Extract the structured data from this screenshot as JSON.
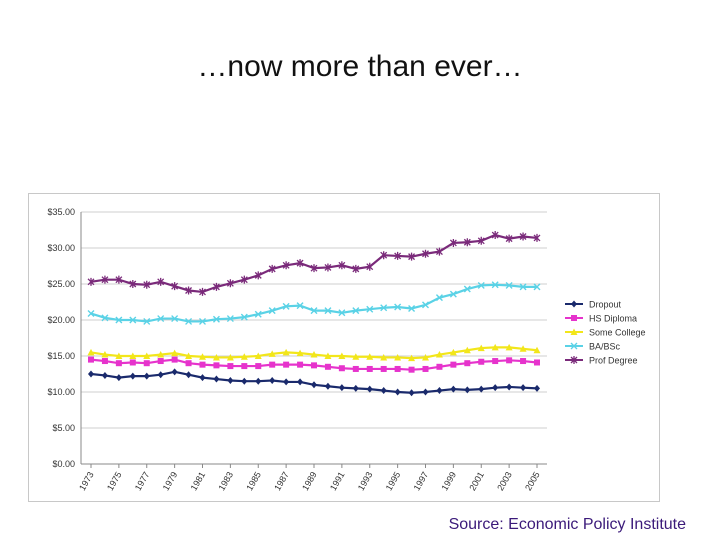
{
  "slide": {
    "title": "…now more than ever…",
    "source": "Source: Economic Policy Institute"
  },
  "chart_data": {
    "type": "line",
    "title": "",
    "xlabel": "",
    "ylabel": "",
    "x": [
      1973,
      1974,
      1975,
      1976,
      1977,
      1978,
      1979,
      1980,
      1981,
      1982,
      1983,
      1984,
      1985,
      1986,
      1987,
      1988,
      1989,
      1990,
      1991,
      1992,
      1993,
      1994,
      1995,
      1996,
      1997,
      1998,
      1999,
      2000,
      2001,
      2002,
      2003,
      2004,
      2005
    ],
    "xticks": [
      "1973",
      "1975",
      "1977",
      "1979",
      "1981",
      "1983",
      "1985",
      "1987",
      "1989",
      "1991",
      "1993",
      "1995",
      "1997",
      "1999",
      "2001",
      "2003",
      "2005"
    ],
    "ylim": [
      0,
      35
    ],
    "yticks": [
      "$0.00",
      "$5.00",
      "$10.00",
      "$15.00",
      "$20.00",
      "$25.00",
      "$30.00",
      "$35.00"
    ],
    "grid": "horizontal",
    "legend_position": "right",
    "series": [
      {
        "name": "Dropout",
        "color": "#1a2a6c",
        "marker": "diamond",
        "values": [
          12.5,
          12.3,
          12.0,
          12.2,
          12.2,
          12.4,
          12.8,
          12.4,
          12.0,
          11.8,
          11.6,
          11.5,
          11.5,
          11.6,
          11.4,
          11.4,
          11.0,
          10.8,
          10.6,
          10.5,
          10.4,
          10.2,
          10.0,
          9.9,
          10.0,
          10.2,
          10.4,
          10.3,
          10.4,
          10.6,
          10.7,
          10.6,
          10.5
        ]
      },
      {
        "name": "HS Diploma",
        "color": "#e633cc",
        "marker": "square",
        "values": [
          14.5,
          14.3,
          14.0,
          14.1,
          14.0,
          14.3,
          14.5,
          14.0,
          13.8,
          13.7,
          13.6,
          13.6,
          13.6,
          13.8,
          13.8,
          13.8,
          13.7,
          13.5,
          13.3,
          13.2,
          13.2,
          13.2,
          13.2,
          13.1,
          13.2,
          13.5,
          13.8,
          14.0,
          14.2,
          14.3,
          14.4,
          14.3,
          14.1
        ]
      },
      {
        "name": "Some College",
        "color": "#f2e61a",
        "marker": "triangle",
        "values": [
          15.5,
          15.2,
          15.0,
          15.0,
          15.0,
          15.2,
          15.4,
          15.0,
          14.9,
          14.8,
          14.8,
          14.9,
          15.0,
          15.3,
          15.5,
          15.4,
          15.2,
          15.0,
          15.0,
          14.9,
          14.9,
          14.8,
          14.8,
          14.7,
          14.8,
          15.2,
          15.5,
          15.8,
          16.1,
          16.2,
          16.2,
          16.0,
          15.8
        ]
      },
      {
        "name": "BA/BSc",
        "color": "#5ad2e6",
        "marker": "x",
        "values": [
          20.9,
          20.3,
          20.0,
          20.0,
          19.8,
          20.2,
          20.2,
          19.8,
          19.8,
          20.1,
          20.2,
          20.4,
          20.8,
          21.3,
          21.9,
          22.0,
          21.3,
          21.3,
          21.0,
          21.3,
          21.5,
          21.7,
          21.8,
          21.6,
          22.1,
          23.1,
          23.6,
          24.3,
          24.8,
          24.9,
          24.8,
          24.6,
          24.6
        ]
      },
      {
        "name": "Prof Degree",
        "color": "#7a2a7a",
        "marker": "star",
        "values": [
          25.3,
          25.6,
          25.6,
          25.0,
          24.9,
          25.3,
          24.7,
          24.1,
          23.9,
          24.6,
          25.1,
          25.6,
          26.2,
          27.1,
          27.6,
          27.9,
          27.2,
          27.3,
          27.6,
          27.1,
          27.4,
          29.0,
          28.9,
          28.8,
          29.2,
          29.5,
          30.7,
          30.8,
          31.0,
          31.8,
          31.3,
          31.6,
          31.4
        ]
      }
    ]
  }
}
